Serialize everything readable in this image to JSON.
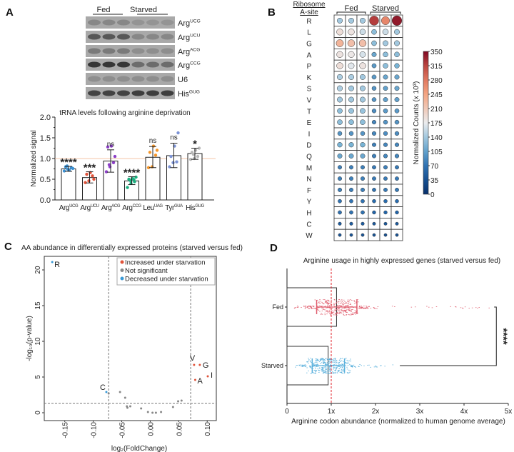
{
  "panels": {
    "a": "A",
    "b": "B",
    "c": "C",
    "d": "D"
  },
  "blot": {
    "groups": [
      "Fed",
      "Starved"
    ],
    "rows": [
      {
        "base": "Arg",
        "sup": "UCG",
        "intensity": [
          0.25,
          0.25,
          0.25,
          0.15,
          0.15,
          0.15
        ]
      },
      {
        "base": "Arg",
        "sup": "UCU",
        "intensity": [
          0.6,
          0.6,
          0.6,
          0.25,
          0.25,
          0.25
        ]
      },
      {
        "base": "Arg",
        "sup": "ACG",
        "intensity": [
          0.35,
          0.35,
          0.35,
          0.2,
          0.2,
          0.2
        ]
      },
      {
        "base": "Arg",
        "sup": "CCG",
        "intensity": [
          0.85,
          0.85,
          0.85,
          0.45,
          0.45,
          0.45
        ]
      },
      {
        "base": "U6",
        "sup": "",
        "intensity": [
          0.2,
          0.2,
          0.2,
          0.2,
          0.2,
          0.2
        ]
      },
      {
        "base": "His",
        "sup": "GUG",
        "intensity": [
          0.75,
          0.75,
          0.75,
          0.8,
          0.8,
          0.8
        ]
      }
    ]
  },
  "chart_data": [
    {
      "type": "bar",
      "title": "tRNA levels following arginine deprivation",
      "ylabel": "Normalized signal",
      "ylim": [
        0,
        2.0
      ],
      "yticks": [
        "0.0",
        "0.5",
        "1.0",
        "1.5",
        "2.0"
      ],
      "reference_line": 1.0,
      "categories": [
        {
          "base": "Arg",
          "sup": "UCG"
        },
        {
          "base": "Arg",
          "sup": "UCU"
        },
        {
          "base": "Arg",
          "sup": "ACG"
        },
        {
          "base": "Arg",
          "sup": "CCG"
        },
        {
          "base": "Leu",
          "sup": "UAG"
        },
        {
          "base": "Tyr",
          "sup": "GUA"
        },
        {
          "base": "His",
          "sup": "GUG"
        }
      ],
      "values": [
        0.75,
        0.54,
        0.94,
        0.46,
        1.03,
        1.07,
        1.12
      ],
      "error_low": [
        0.69,
        0.41,
        0.67,
        0.37,
        0.78,
        0.78,
        0.98
      ],
      "error_high": [
        0.81,
        0.68,
        1.21,
        0.56,
        1.29,
        1.37,
        1.25
      ],
      "significance": [
        "****",
        "***",
        "ns",
        "****",
        "ns",
        "ns",
        "*"
      ],
      "points": [
        [
          0.7,
          0.74,
          0.78,
          0.8,
          0.72,
          0.76,
          0.82
        ],
        [
          0.42,
          0.46,
          0.58,
          0.62,
          0.66,
          0.5
        ],
        [
          0.68,
          0.8,
          0.9,
          1.28,
          1.3,
          1.05,
          0.85
        ],
        [
          0.3,
          0.4,
          0.44,
          0.5,
          0.52,
          0.55,
          0.47,
          0.49
        ],
        [
          0.78,
          0.8,
          1.08,
          1.15,
          1.3,
          1.2
        ],
        [
          0.8,
          0.9,
          0.92,
          1.05,
          1.3,
          1.62
        ],
        [
          0.98,
          1.0,
          1.05,
          1.15,
          1.2,
          1.25,
          1.1
        ]
      ],
      "colors": [
        "#3a8fd1",
        "#e0533a",
        "#8c3fc8",
        "#1bae7f",
        "#f5962a",
        "#7c93d6",
        "#b8b8b8"
      ]
    },
    {
      "type": "heatmap",
      "header": [
        "Ribosome",
        "A-site"
      ],
      "groups": [
        "Fed",
        "Starved"
      ],
      "rows": [
        "R",
        "L",
        "G",
        "A",
        "P",
        "K",
        "S",
        "V",
        "T",
        "E",
        "I",
        "D",
        "Q",
        "M",
        "N",
        "F",
        "Y",
        "H",
        "C",
        "W"
      ],
      "values": [
        [
          140,
          140,
          140,
          320,
          270,
          340
        ],
        [
          190,
          185,
          160,
          130,
          160,
          140
        ],
        [
          230,
          220,
          220,
          130,
          140,
          140
        ],
        [
          185,
          180,
          165,
          110,
          130,
          130
        ],
        [
          190,
          170,
          185,
          100,
          130,
          120
        ],
        [
          145,
          145,
          140,
          100,
          110,
          110
        ],
        [
          145,
          140,
          140,
          95,
          105,
          110
        ],
        [
          140,
          140,
          140,
          95,
          105,
          105
        ],
        [
          130,
          135,
          135,
          90,
          100,
          100
        ],
        [
          130,
          130,
          130,
          85,
          95,
          95
        ],
        [
          95,
          95,
          95,
          85,
          90,
          90
        ],
        [
          120,
          120,
          120,
          80,
          85,
          85
        ],
        [
          110,
          110,
          110,
          80,
          85,
          85
        ],
        [
          80,
          80,
          80,
          75,
          80,
          75
        ],
        [
          80,
          80,
          80,
          75,
          75,
          75
        ],
        [
          80,
          80,
          80,
          70,
          75,
          75
        ],
        [
          70,
          70,
          70,
          65,
          65,
          65
        ],
        [
          70,
          70,
          70,
          60,
          60,
          60
        ],
        [
          50,
          50,
          50,
          45,
          45,
          45
        ],
        [
          40,
          40,
          40,
          38,
          38,
          38
        ]
      ],
      "colorbar": {
        "label": "Normalized  Counts  (x  10³)",
        "ticks": [
          "0",
          "35",
          "70",
          "105",
          "140",
          "175",
          "210",
          "245",
          "280",
          "315",
          "350"
        ],
        "range": [
          0,
          350
        ]
      }
    },
    {
      "type": "scatter",
      "title": "AA abundance in differentially expressed proteins (starved versus fed)",
      "xlabel": "log₂(FoldChange)",
      "ylabel": "-log₁₀(p-value)",
      "xlim": [
        -0.186,
        0.116
      ],
      "ylim": [
        -1.1,
        21.9
      ],
      "xticks": [
        "-0.15",
        "-0.10",
        "-0.05",
        "0.00",
        "0.05",
        "0.10"
      ],
      "yticks": [
        "0",
        "5",
        "10",
        "15",
        "20"
      ],
      "thresholds": {
        "x": [
          -0.073,
          0.071
        ],
        "y": 1.3
      },
      "legend": {
        "position": "top-right",
        "entries": [
          {
            "label": "Increased under starvation",
            "color": "#e0533a"
          },
          {
            "label": "Not significant",
            "color": "#888888"
          },
          {
            "label": "Decreased under starvation",
            "color": "#3a9ad6"
          }
        ]
      },
      "points": [
        {
          "x": -0.172,
          "y": 21.1,
          "cls": 2,
          "label": "R"
        },
        {
          "x": -0.077,
          "y": 2.9,
          "cls": 2,
          "label": "C"
        },
        {
          "x": 0.077,
          "y": 6.7,
          "cls": 0,
          "label": "V"
        },
        {
          "x": 0.087,
          "y": 6.7,
          "cls": 0,
          "label": "G"
        },
        {
          "x": 0.079,
          "y": 4.6,
          "cls": 0,
          "label": "A"
        },
        {
          "x": 0.101,
          "y": 5.1,
          "cls": 0,
          "label": "I"
        },
        {
          "x": -0.073,
          "y": 2.7,
          "cls": 1,
          "label": ""
        },
        {
          "x": -0.053,
          "y": 2.9,
          "cls": 1,
          "label": ""
        },
        {
          "x": -0.044,
          "y": 2.1,
          "cls": 1,
          "label": ""
        },
        {
          "x": -0.041,
          "y": 0.9,
          "cls": 1,
          "label": ""
        },
        {
          "x": -0.04,
          "y": 0.7,
          "cls": 1,
          "label": ""
        },
        {
          "x": -0.035,
          "y": 0.9,
          "cls": 1,
          "label": ""
        },
        {
          "x": -0.016,
          "y": 0.6,
          "cls": 1,
          "label": ""
        },
        {
          "x": -0.004,
          "y": 0.1,
          "cls": 1,
          "label": ""
        },
        {
          "x": 0.004,
          "y": 0.0,
          "cls": 1,
          "label": ""
        },
        {
          "x": 0.01,
          "y": 0.0,
          "cls": 1,
          "label": ""
        },
        {
          "x": 0.019,
          "y": 0.1,
          "cls": 1,
          "label": ""
        },
        {
          "x": 0.04,
          "y": 0.8,
          "cls": 1,
          "label": ""
        },
        {
          "x": 0.049,
          "y": 1.6,
          "cls": 1,
          "label": ""
        },
        {
          "x": 0.055,
          "y": 1.7,
          "cls": 1,
          "label": ""
        }
      ]
    },
    {
      "type": "bar",
      "orientation": "horizontal",
      "title": "Arginine usage in highly expressed genes (starved versus fed)",
      "xlabel": "Arginine codon abundance (normalized to human genome average)",
      "xlim": [
        0,
        5
      ],
      "xticks": [
        "0",
        "1x",
        "2x",
        "3x",
        "4x",
        "5x"
      ],
      "reference_line": 1,
      "categories": [
        "Fed",
        "Starved"
      ],
      "values": [
        1.12,
        0.93
      ],
      "error_low": [
        0.67,
        0.57
      ],
      "error_high": [
        1.58,
        1.3
      ],
      "point_range": [
        [
          0.1,
          4.65
        ],
        [
          0.1,
          2.5
        ]
      ],
      "colors": [
        "#e06070",
        "#5ab0dc"
      ],
      "significance": "****"
    }
  ]
}
